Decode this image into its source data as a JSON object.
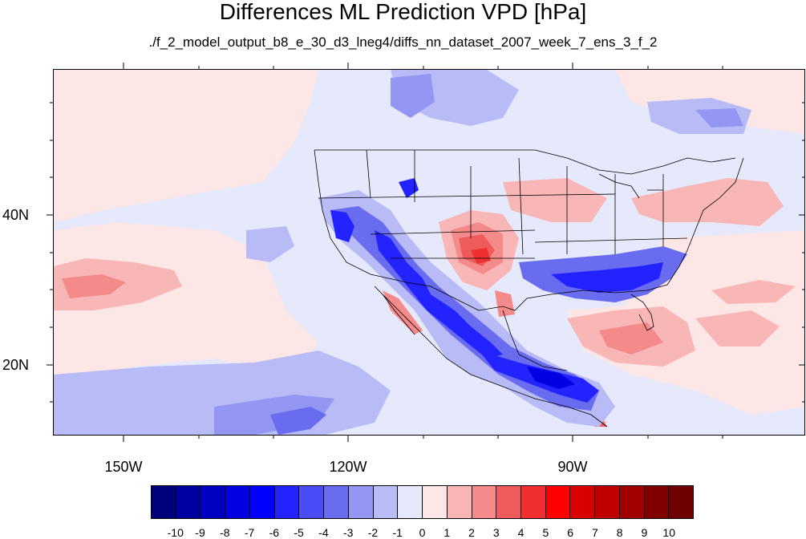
{
  "title": "Differences ML Prediction VPD [hPa]",
  "subtitle": "./f_2_model_output_b8_e_30_d3_lneg4/diffs_nn_dataset_2007_week_7_ens_3_f_2",
  "lat_labels": [
    "40N",
    "20N"
  ],
  "lon_labels": [
    "150W",
    "120W",
    "90W"
  ],
  "colorbar": {
    "labels": [
      "-10",
      "-9",
      "-8",
      "-7",
      "-6",
      "-5",
      "-4",
      "-3",
      "-2",
      "-1",
      "0",
      "1",
      "2",
      "3",
      "4",
      "5",
      "6",
      "7",
      "8",
      "9",
      "10"
    ],
    "colors": [
      "#00007a",
      "#0000a0",
      "#0000c0",
      "#0000e0",
      "#0000ff",
      "#2323ff",
      "#4a4cf5",
      "#6a6cf0",
      "#9496f4",
      "#b9bbf7",
      "#e6e8fb",
      "#fde6e6",
      "#f9b6b6",
      "#f48a8a",
      "#ef5a5a",
      "#f03030",
      "#ff0000",
      "#d80000",
      "#bf0000",
      "#a00000",
      "#800000",
      "#6e0000"
    ]
  },
  "colors": {
    "background": "#e6e8fb",
    "ocean_pale_red": "#fde6e6",
    "light_red": "#f9b6b6",
    "red": "#ef5a5a",
    "light_blue": "#b9bbf7",
    "blue": "#6a6cf0",
    "dark_blue": "#2323ff"
  }
}
